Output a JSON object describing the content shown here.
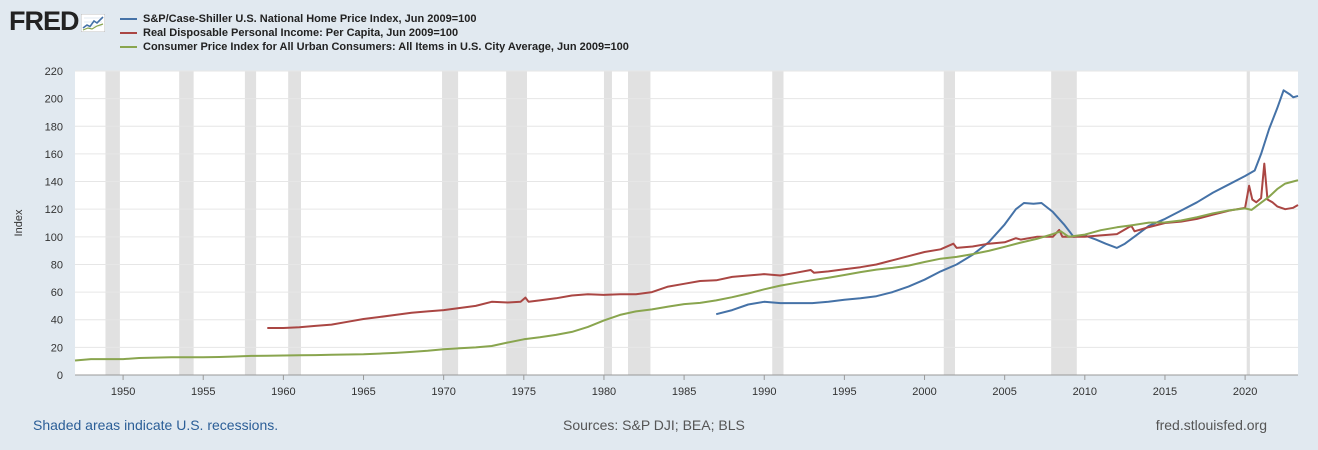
{
  "logo": {
    "text": "FRED"
  },
  "chart_data": {
    "type": "line",
    "ylabel": "Index",
    "xlabel": "",
    "xlim": [
      1947.0,
      2023.3
    ],
    "ylim": [
      0,
      220
    ],
    "yticks": [
      0,
      20,
      40,
      60,
      80,
      100,
      120,
      140,
      160,
      180,
      200,
      220
    ],
    "xticks": [
      1950,
      1955,
      1960,
      1965,
      1970,
      1975,
      1980,
      1985,
      1990,
      1995,
      2000,
      2005,
      2010,
      2015,
      2020
    ],
    "grid": "horizontal",
    "legend_position": "top-left",
    "recessions": [
      [
        1948.9,
        1949.8
      ],
      [
        1953.5,
        1954.4
      ],
      [
        1957.6,
        1958.3
      ],
      [
        1960.3,
        1961.1
      ],
      [
        1969.9,
        1970.9
      ],
      [
        1973.9,
        1975.2
      ],
      [
        1980.0,
        1980.5
      ],
      [
        1981.5,
        1982.9
      ],
      [
        1990.5,
        1991.2
      ],
      [
        2001.2,
        2001.9
      ],
      [
        2007.9,
        2009.5
      ],
      [
        2020.1,
        2020.3
      ]
    ],
    "series": [
      {
        "name": "S&P/Case-Shiller U.S. National Home Price Index, Jun 2009=100",
        "color": "#4572a7",
        "points": [
          [
            1987.0,
            44
          ],
          [
            1988,
            47
          ],
          [
            1989,
            51
          ],
          [
            1990,
            53
          ],
          [
            1991,
            52
          ],
          [
            1992,
            52
          ],
          [
            1993,
            52
          ],
          [
            1994,
            53
          ],
          [
            1995,
            54.5
          ],
          [
            1996,
            55.5
          ],
          [
            1997,
            57
          ],
          [
            1998,
            60
          ],
          [
            1999,
            64
          ],
          [
            2000,
            69
          ],
          [
            2001,
            75
          ],
          [
            2002,
            80
          ],
          [
            2003,
            87
          ],
          [
            2004,
            96
          ],
          [
            2005,
            109
          ],
          [
            2005.7,
            120
          ],
          [
            2006.2,
            124.5
          ],
          [
            2006.8,
            124
          ],
          [
            2007.3,
            124.5
          ],
          [
            2008,
            118
          ],
          [
            2008.7,
            109
          ],
          [
            2009.3,
            100
          ],
          [
            2010,
            101
          ],
          [
            2010.7,
            98
          ],
          [
            2011.3,
            95
          ],
          [
            2012,
            92
          ],
          [
            2012.5,
            95
          ],
          [
            2013.2,
            101
          ],
          [
            2014,
            108
          ],
          [
            2015,
            113
          ],
          [
            2016,
            119
          ],
          [
            2017,
            125
          ],
          [
            2018,
            132
          ],
          [
            2019,
            138
          ],
          [
            2020,
            144
          ],
          [
            2020.6,
            148
          ],
          [
            2021,
            160
          ],
          [
            2021.5,
            178
          ],
          [
            2022.0,
            193
          ],
          [
            2022.4,
            206
          ],
          [
            2022.8,
            203
          ],
          [
            2023.0,
            201
          ],
          [
            2023.3,
            202
          ]
        ]
      },
      {
        "name": "Real Disposable Personal Income: Per Capita, Jun 2009=100",
        "color": "#aa4643",
        "points": [
          [
            1959.0,
            34
          ],
          [
            1960,
            34
          ],
          [
            1961,
            34.5
          ],
          [
            1962,
            35.5
          ],
          [
            1963,
            36.5
          ],
          [
            1964,
            38.5
          ],
          [
            1965,
            40.5
          ],
          [
            1966,
            42
          ],
          [
            1967,
            43.5
          ],
          [
            1968,
            45
          ],
          [
            1969,
            46
          ],
          [
            1970,
            47
          ],
          [
            1971,
            48.5
          ],
          [
            1972,
            50
          ],
          [
            1973,
            53
          ],
          [
            1974,
            52.5
          ],
          [
            1974.8,
            53
          ],
          [
            1975.1,
            56
          ],
          [
            1975.3,
            53
          ],
          [
            1976,
            54
          ],
          [
            1977,
            55.5
          ],
          [
            1978,
            57.5
          ],
          [
            1979,
            58.5
          ],
          [
            1980,
            58
          ],
          [
            1981,
            58.5
          ],
          [
            1982,
            58.5
          ],
          [
            1983,
            60
          ],
          [
            1984,
            64
          ],
          [
            1985,
            66
          ],
          [
            1986,
            68
          ],
          [
            1987,
            68.5
          ],
          [
            1988,
            71
          ],
          [
            1989,
            72
          ],
          [
            1990,
            73
          ],
          [
            1991,
            72
          ],
          [
            1992,
            74
          ],
          [
            1992.9,
            76
          ],
          [
            1993.1,
            74
          ],
          [
            1994,
            75
          ],
          [
            1995,
            76.5
          ],
          [
            1996,
            78
          ],
          [
            1997,
            80
          ],
          [
            1998,
            83
          ],
          [
            1999,
            86
          ],
          [
            2000,
            89
          ],
          [
            2001,
            91
          ],
          [
            2001.8,
            95
          ],
          [
            2002,
            92
          ],
          [
            2003,
            93
          ],
          [
            2004,
            95
          ],
          [
            2005,
            96
          ],
          [
            2005.7,
            99
          ],
          [
            2006,
            98
          ],
          [
            2007,
            100
          ],
          [
            2008,
            100
          ],
          [
            2008.4,
            105
          ],
          [
            2008.6,
            100
          ],
          [
            2009,
            100
          ],
          [
            2010,
            100
          ],
          [
            2011,
            101
          ],
          [
            2012,
            102
          ],
          [
            2012.9,
            108
          ],
          [
            2013.1,
            104
          ],
          [
            2014,
            107
          ],
          [
            2015,
            110
          ],
          [
            2016,
            111
          ],
          [
            2017,
            113
          ],
          [
            2018,
            116
          ],
          [
            2019,
            119
          ],
          [
            2020.0,
            121
          ],
          [
            2020.25,
            137
          ],
          [
            2020.45,
            127
          ],
          [
            2020.7,
            125
          ],
          [
            2021.0,
            128
          ],
          [
            2021.2,
            153
          ],
          [
            2021.4,
            127
          ],
          [
            2021.7,
            125
          ],
          [
            2022.0,
            122
          ],
          [
            2022.5,
            120
          ],
          [
            2023.0,
            121
          ],
          [
            2023.3,
            123
          ]
        ]
      },
      {
        "name": "Consumer Price Index for All Urban Consumers: All Items in U.S. City Average, Jun 2009=100",
        "color": "#89a54e",
        "points": [
          [
            1947.0,
            10.5
          ],
          [
            1948,
            11.5
          ],
          [
            1949,
            11.5
          ],
          [
            1950,
            11.5
          ],
          [
            1951,
            12.3
          ],
          [
            1952,
            12.6
          ],
          [
            1953,
            12.8
          ],
          [
            1954,
            12.8
          ],
          [
            1955,
            12.8
          ],
          [
            1956,
            13
          ],
          [
            1957,
            13.4
          ],
          [
            1958,
            13.8
          ],
          [
            1959,
            13.9
          ],
          [
            1960,
            14.1
          ],
          [
            1961,
            14.3
          ],
          [
            1962,
            14.4
          ],
          [
            1963,
            14.6
          ],
          [
            1964,
            14.8
          ],
          [
            1965,
            15
          ],
          [
            1966,
            15.5
          ],
          [
            1967,
            16
          ],
          [
            1968,
            16.7
          ],
          [
            1969,
            17.5
          ],
          [
            1970,
            18.6
          ],
          [
            1971,
            19.4
          ],
          [
            1972,
            20
          ],
          [
            1973,
            21
          ],
          [
            1974,
            23.5
          ],
          [
            1975,
            25.8
          ],
          [
            1976,
            27.3
          ],
          [
            1977,
            29
          ],
          [
            1978,
            31.2
          ],
          [
            1979,
            34.8
          ],
          [
            1980,
            39.5
          ],
          [
            1981,
            43.5
          ],
          [
            1982,
            46
          ],
          [
            1983,
            47.5
          ],
          [
            1984,
            49.5
          ],
          [
            1985,
            51.3
          ],
          [
            1986,
            52.2
          ],
          [
            1987,
            54
          ],
          [
            1988,
            56.3
          ],
          [
            1989,
            59
          ],
          [
            1990,
            62
          ],
          [
            1991,
            64.7
          ],
          [
            1992,
            66.7
          ],
          [
            1993,
            68.6
          ],
          [
            1994,
            70.4
          ],
          [
            1995,
            72.4
          ],
          [
            1996,
            74.5
          ],
          [
            1997,
            76.3
          ],
          [
            1998,
            77.5
          ],
          [
            1999,
            79.2
          ],
          [
            2000,
            81.8
          ],
          [
            2001,
            84.2
          ],
          [
            2002,
            85.5
          ],
          [
            2003,
            87.5
          ],
          [
            2004,
            89.8
          ],
          [
            2005,
            92.8
          ],
          [
            2006,
            95.8
          ],
          [
            2007,
            98.5
          ],
          [
            2008,
            102
          ],
          [
            2008.5,
            104
          ],
          [
            2009,
            100
          ],
          [
            2010,
            101.6
          ],
          [
            2011,
            104.8
          ],
          [
            2012,
            106.9
          ],
          [
            2013,
            108.5
          ],
          [
            2014,
            110.3
          ],
          [
            2015,
            110.4
          ],
          [
            2016,
            111.8
          ],
          [
            2017,
            114.2
          ],
          [
            2018,
            117
          ],
          [
            2019,
            119.1
          ],
          [
            2020,
            120.6
          ],
          [
            2020.4,
            119.5
          ],
          [
            2021,
            124.7
          ],
          [
            2021.5,
            129
          ],
          [
            2022,
            134.5
          ],
          [
            2022.5,
            138.5
          ],
          [
            2023,
            140
          ],
          [
            2023.3,
            141
          ]
        ]
      }
    ]
  },
  "footer": {
    "note": "Shaded areas indicate U.S. recessions.",
    "sources": "Sources: S&P DJI; BEA; BLS",
    "site": "fred.stlouisfed.org"
  }
}
